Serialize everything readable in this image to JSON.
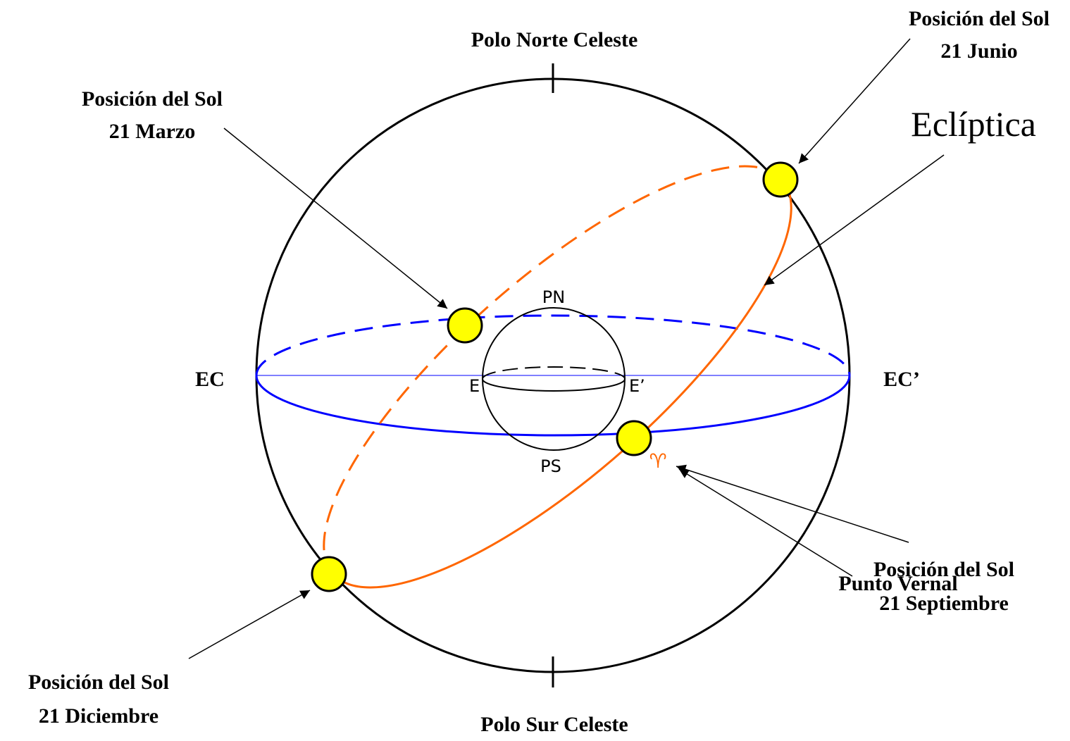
{
  "title": "Eclíptica",
  "poles": {
    "north": "Polo Norte Celeste",
    "south": "Polo Sur Celeste"
  },
  "equator": {
    "left": "EC",
    "right": "EC’"
  },
  "inner_sphere": {
    "north": "PN",
    "south": "PS",
    "left": "E",
    "right": "E’"
  },
  "sun_positions": [
    {
      "label": "Posición del Sol",
      "date": "21 Junio"
    },
    {
      "label": "Posición del Sol",
      "date": "21 Marzo"
    },
    {
      "label": "Posición del Sol",
      "date": "21 Septiembre"
    },
    {
      "label": "Posición del Sol",
      "date": "21 Diciembre"
    }
  ],
  "vernal_point": {
    "label": "Punto Vernal",
    "symbol": "♈"
  }
}
